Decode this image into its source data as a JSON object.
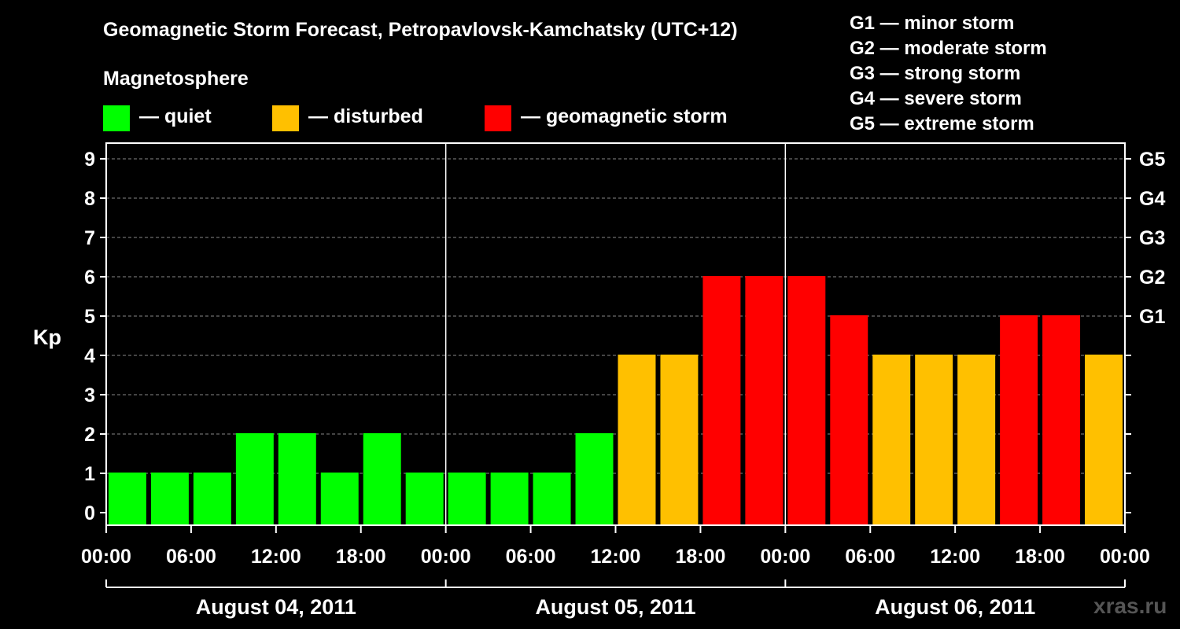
{
  "chart_data": {
    "type": "bar",
    "title": "Geomagnetic Storm Forecast, Petropavlovsk-Kamchatsky (UTC+12)",
    "ylabel": "Kp",
    "ylim": [
      0,
      9
    ],
    "yticks": [
      "0",
      "1",
      "2",
      "3",
      "4",
      "5",
      "6",
      "7",
      "8",
      "9"
    ],
    "right_axis_labels": [
      {
        "kp": 5,
        "label": "G1"
      },
      {
        "kp": 6,
        "label": "G2"
      },
      {
        "kp": 7,
        "label": "G3"
      },
      {
        "kp": 8,
        "label": "G4"
      },
      {
        "kp": 9,
        "label": "G5"
      }
    ],
    "xticks": [
      "00:00",
      "06:00",
      "12:00",
      "18:00",
      "00:00",
      "06:00",
      "12:00",
      "18:00",
      "00:00",
      "06:00",
      "12:00",
      "18:00",
      "00:00"
    ],
    "days": [
      "August 04, 2011",
      "August 05, 2011",
      "August 06, 2011"
    ],
    "values": [
      1,
      1,
      1,
      2,
      2,
      1,
      2,
      1,
      1,
      1,
      1,
      2,
      4,
      4,
      6,
      6,
      6,
      5,
      4,
      4,
      4,
      5,
      5,
      4
    ],
    "colors": {
      "quiet": "#00ff00",
      "disturbed": "#ffc000",
      "storm": "#ff0000"
    },
    "thresholds": {
      "disturbed_min": 4,
      "storm_min": 5
    },
    "grid": true
  },
  "legend": {
    "heading": "Magnetosphere",
    "items": [
      {
        "label": "— quiet",
        "color": "#00ff00"
      },
      {
        "label": "— disturbed",
        "color": "#ffc000"
      },
      {
        "label": "— geomagnetic storm",
        "color": "#ff0000"
      }
    ]
  },
  "storm_scale": [
    "G1 — minor storm",
    "G2 — moderate storm",
    "G3 — strong storm",
    "G4 — severe storm",
    "G5 — extreme storm"
  ],
  "watermark": "xras.ru"
}
